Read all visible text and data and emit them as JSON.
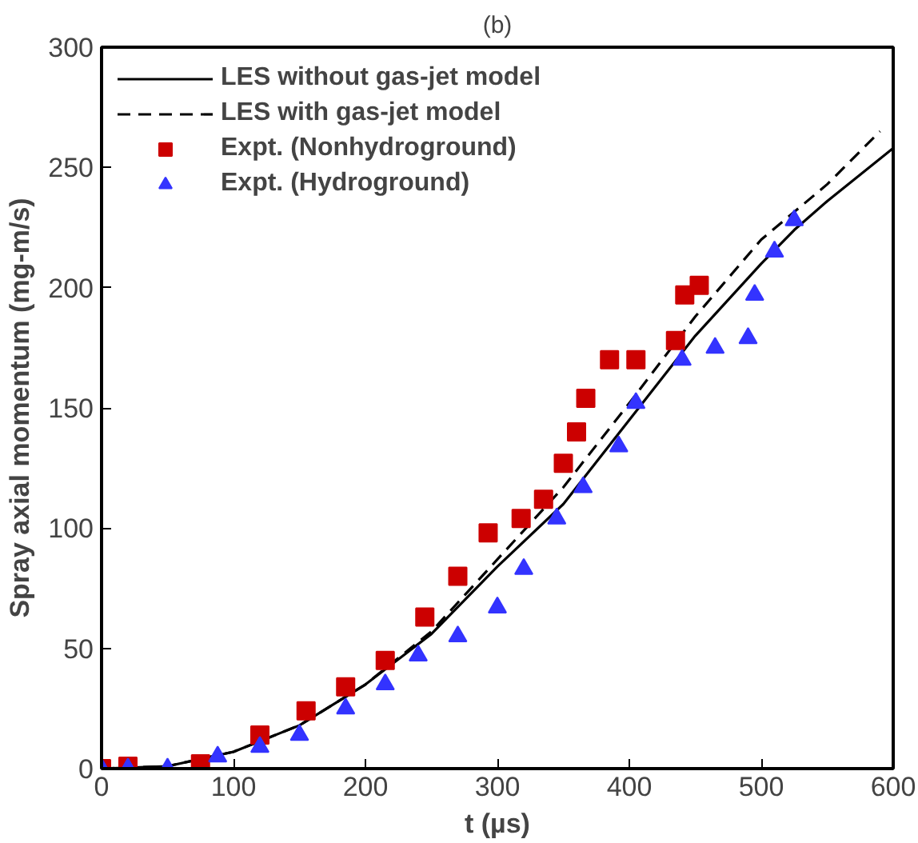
{
  "chart_data": {
    "type": "line",
    "title": "(b)",
    "xlabel": "t (µs)",
    "ylabel": "Spray axial momentum (mg-m/s)",
    "xlim": [
      0,
      600
    ],
    "ylim": [
      0,
      300
    ],
    "xticks": [
      0,
      100,
      200,
      300,
      400,
      500,
      600
    ],
    "yticks": [
      0,
      50,
      100,
      150,
      200,
      250,
      300
    ],
    "grid": false,
    "legend": "top left",
    "series": [
      {
        "name": "LES without gas-jet model",
        "line_style": "solid",
        "color": "#000000",
        "x": [
          0,
          50,
          100,
          150,
          200,
          250,
          300,
          350,
          400,
          450,
          500,
          525,
          550,
          600
        ],
        "values": [
          0,
          1,
          7,
          18,
          35,
          56,
          84,
          110,
          145,
          180,
          210,
          224,
          236,
          258
        ]
      },
      {
        "name": "LES with gas-jet model",
        "line_style": "dashed",
        "color": "#000000",
        "x": [
          0,
          50,
          100,
          150,
          200,
          250,
          300,
          350,
          400,
          450,
          500,
          550,
          590
        ],
        "values": [
          0,
          1,
          7,
          18,
          35,
          57,
          87,
          117,
          152,
          188,
          220,
          243,
          265
        ]
      },
      {
        "name": "Expt. (Nonhydroground)",
        "type": "scatter",
        "marker": "square",
        "color": "#cc0000",
        "x": [
          0,
          20,
          75,
          120,
          155,
          185,
          215,
          245,
          270,
          293,
          318,
          335,
          350,
          360,
          367,
          385,
          405,
          435,
          442,
          453
        ],
        "values": [
          0,
          1,
          2,
          14,
          24,
          34,
          45,
          63,
          80,
          98,
          104,
          112,
          127,
          140,
          154,
          170,
          170,
          178,
          197,
          201
        ]
      },
      {
        "name": "Expt. (Hydroground)",
        "type": "scatter",
        "marker": "triangle",
        "color": "#3333ff",
        "x": [
          0,
          20,
          50,
          88,
          120,
          150,
          185,
          215,
          240,
          270,
          300,
          320,
          345,
          365,
          392,
          405,
          440,
          465,
          490,
          495,
          510,
          525
        ],
        "values": [
          0,
          0,
          0,
          5,
          9,
          14,
          25,
          35,
          47,
          55,
          67,
          83,
          104,
          117,
          134,
          152,
          170,
          175,
          179,
          197,
          215,
          228
        ]
      }
    ]
  }
}
